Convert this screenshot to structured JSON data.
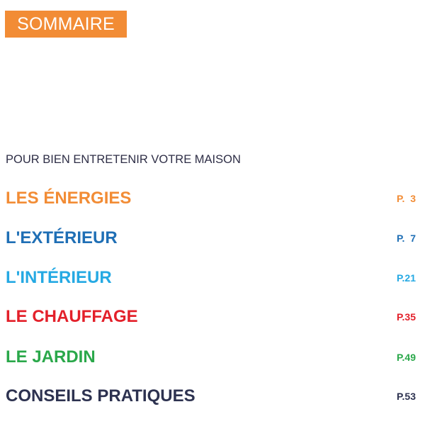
{
  "header": {
    "title": "SOMMAIRE",
    "title_bg_color": "#f28c35"
  },
  "intro": "POUR BIEN ENTRETENIR VOTRE MAISON",
  "toc": [
    {
      "label": "LES ÉNERGIES",
      "page": "P.  3",
      "color": "#f28c35"
    },
    {
      "label": "L'EXTÉRIEUR",
      "page": "P.  7",
      "color": "#1f6fb5"
    },
    {
      "label": "L'INTÉRIEUR",
      "page": "P.21",
      "color": "#25a9e3"
    },
    {
      "label": "LE CHAUFFAGE",
      "page": "P.35",
      "color": "#e3202a"
    },
    {
      "label": "LE JARDIN",
      "page": "P.49",
      "color": "#2aa84a"
    },
    {
      "label": "CONSEILS PRATIQUES",
      "page": "P.53",
      "color": "#2d3250"
    }
  ]
}
